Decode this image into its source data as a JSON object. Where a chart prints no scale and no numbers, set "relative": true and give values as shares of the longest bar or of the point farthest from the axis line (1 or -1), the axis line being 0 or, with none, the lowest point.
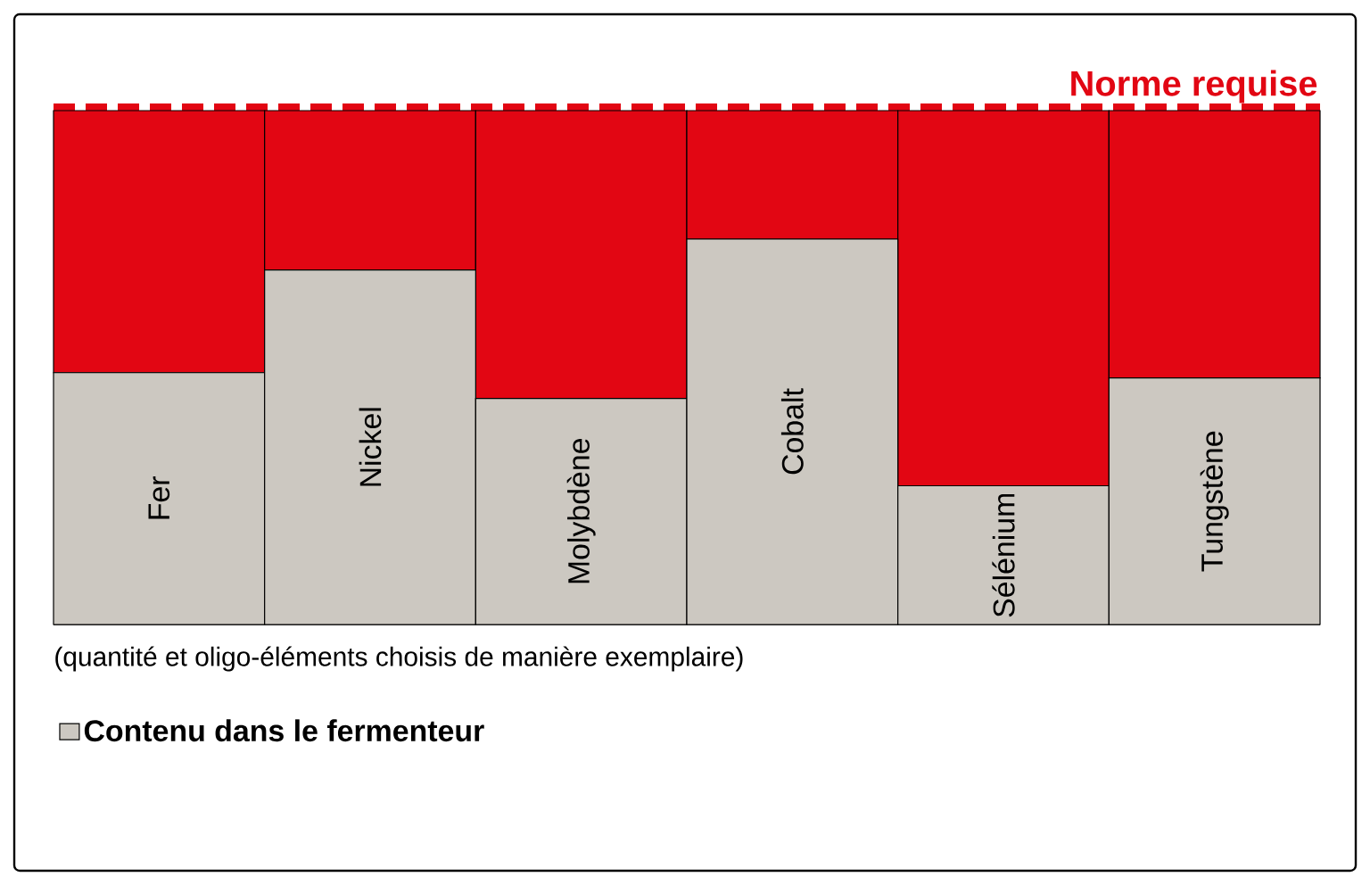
{
  "chart_data": {
    "type": "bar",
    "stacked": true,
    "relative": true,
    "legend": "bottom",
    "categories": [
      "Fer",
      "Nickel",
      "Molybdène",
      "Cobalt",
      "Sélénium",
      "Tungstène"
    ],
    "series": [
      {
        "name": "Contenu dans le fermenteur",
        "color": "#ccc8c1",
        "values": [
          0.49,
          0.69,
          0.44,
          0.75,
          0.27,
          0.48
        ]
      },
      {
        "color": "#e20613",
        "values": [
          0.51,
          0.31,
          0.56,
          0.25,
          0.73,
          0.52
        ]
      }
    ],
    "ref_lines": [
      {
        "axis": "y",
        "value": 1,
        "label": "Norme requise",
        "color": "#e20613",
        "line_style": "dashed"
      }
    ],
    "annotations": [
      "(quantité et oligo-éléments choisis de manière exemplaire)"
    ]
  }
}
